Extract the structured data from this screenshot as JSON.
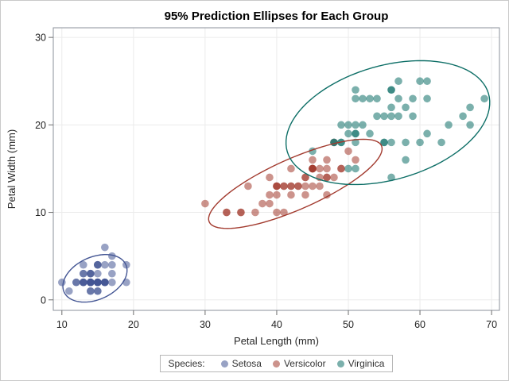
{
  "title": "95% Prediction Ellipses for Each Group",
  "legend": {
    "label": "Species:",
    "items": [
      {
        "name": "Setosa"
      },
      {
        "name": "Versicolor"
      },
      {
        "name": "Virginica"
      }
    ]
  },
  "chart_data": {
    "type": "scatter",
    "title": "95% Prediction Ellipses for Each Group",
    "xlabel": "Petal Length (mm)",
    "ylabel": "Petal Width (mm)",
    "xticks": [
      10,
      20,
      30,
      40,
      50,
      60,
      70
    ],
    "yticks": [
      0,
      10,
      20,
      30
    ],
    "xlim": [
      8.8,
      71.1
    ],
    "ylim": [
      -1.2,
      31.1
    ],
    "grid": true,
    "legend_position": "bottom",
    "marker_alpha": 0.55,
    "colors": {
      "grid": "#ebebeb",
      "plot_border": "#8b929b",
      "tick": "#6d6d6d",
      "tick_label": "#222222",
      "figure_border": "#c9c9c9"
    },
    "series": [
      {
        "name": "Setosa",
        "color": "#445694",
        "points": [
          [
            14,
            2
          ],
          [
            14,
            2
          ],
          [
            13,
            2
          ],
          [
            15,
            2
          ],
          [
            14,
            2
          ],
          [
            17,
            4
          ],
          [
            14,
            3
          ],
          [
            15,
            2
          ],
          [
            14,
            2
          ],
          [
            15,
            1
          ],
          [
            15,
            2
          ],
          [
            16,
            2
          ],
          [
            14,
            1
          ],
          [
            11,
            1
          ],
          [
            12,
            2
          ],
          [
            15,
            4
          ],
          [
            13,
            4
          ],
          [
            14,
            3
          ],
          [
            17,
            3
          ],
          [
            15,
            3
          ],
          [
            17,
            2
          ],
          [
            15,
            4
          ],
          [
            10,
            2
          ],
          [
            17,
            5
          ],
          [
            19,
            2
          ],
          [
            16,
            2
          ],
          [
            16,
            4
          ],
          [
            15,
            2
          ],
          [
            14,
            2
          ],
          [
            16,
            2
          ],
          [
            16,
            2
          ],
          [
            15,
            4
          ],
          [
            15,
            1
          ],
          [
            14,
            2
          ],
          [
            15,
            2
          ],
          [
            12,
            2
          ],
          [
            13,
            2
          ],
          [
            14,
            1
          ],
          [
            13,
            2
          ],
          [
            15,
            2
          ],
          [
            13,
            3
          ],
          [
            13,
            3
          ],
          [
            13,
            2
          ],
          [
            16,
            6
          ],
          [
            19,
            4
          ],
          [
            14,
            3
          ],
          [
            16,
            2
          ],
          [
            14,
            2
          ],
          [
            15,
            2
          ],
          [
            14,
            2
          ]
        ],
        "ellipse": {
          "cx": 14.62,
          "cy": 2.46,
          "a": 4.61,
          "b": 2.49,
          "angle_deg": 16.3
        }
      },
      {
        "name": "Versicolor",
        "color": "#A23A2E",
        "points": [
          [
            47,
            14
          ],
          [
            45,
            15
          ],
          [
            49,
            15
          ],
          [
            40,
            13
          ],
          [
            46,
            15
          ],
          [
            45,
            13
          ],
          [
            47,
            16
          ],
          [
            33,
            10
          ],
          [
            46,
            13
          ],
          [
            39,
            14
          ],
          [
            35,
            10
          ],
          [
            42,
            15
          ],
          [
            40,
            10
          ],
          [
            47,
            14
          ],
          [
            36,
            13
          ],
          [
            44,
            14
          ],
          [
            45,
            15
          ],
          [
            41,
            10
          ],
          [
            45,
            15
          ],
          [
            39,
            11
          ],
          [
            48,
            18
          ],
          [
            40,
            13
          ],
          [
            49,
            15
          ],
          [
            47,
            12
          ],
          [
            43,
            13
          ],
          [
            44,
            14
          ],
          [
            48,
            14
          ],
          [
            50,
            17
          ],
          [
            45,
            15
          ],
          [
            35,
            10
          ],
          [
            38,
            11
          ],
          [
            37,
            10
          ],
          [
            39,
            12
          ],
          [
            51,
            16
          ],
          [
            45,
            15
          ],
          [
            45,
            16
          ],
          [
            47,
            15
          ],
          [
            44,
            13
          ],
          [
            41,
            13
          ],
          [
            40,
            13
          ],
          [
            44,
            12
          ],
          [
            46,
            14
          ],
          [
            40,
            12
          ],
          [
            33,
            10
          ],
          [
            42,
            13
          ],
          [
            42,
            12
          ],
          [
            42,
            13
          ],
          [
            43,
            13
          ],
          [
            30,
            11
          ],
          [
            41,
            13
          ]
        ],
        "ellipse": {
          "cx": 42.6,
          "cy": 13.26,
          "a": 12.8,
          "b": 2.98,
          "angle_deg": 19.4
        }
      },
      {
        "name": "Virginica",
        "color": "#0E6F67",
        "points": [
          [
            60,
            25
          ],
          [
            51,
            19
          ],
          [
            59,
            21
          ],
          [
            56,
            18
          ],
          [
            58,
            22
          ],
          [
            66,
            21
          ],
          [
            45,
            17
          ],
          [
            63,
            18
          ],
          [
            58,
            18
          ],
          [
            61,
            25
          ],
          [
            51,
            20
          ],
          [
            53,
            19
          ],
          [
            55,
            21
          ],
          [
            50,
            20
          ],
          [
            51,
            24
          ],
          [
            53,
            23
          ],
          [
            55,
            18
          ],
          [
            67,
            22
          ],
          [
            69,
            23
          ],
          [
            50,
            15
          ],
          [
            57,
            23
          ],
          [
            49,
            20
          ],
          [
            67,
            20
          ],
          [
            49,
            18
          ],
          [
            57,
            21
          ],
          [
            60,
            18
          ],
          [
            48,
            18
          ],
          [
            49,
            18
          ],
          [
            56,
            21
          ],
          [
            58,
            16
          ],
          [
            61,
            19
          ],
          [
            64,
            20
          ],
          [
            56,
            22
          ],
          [
            51,
            15
          ],
          [
            56,
            14
          ],
          [
            61,
            23
          ],
          [
            56,
            24
          ],
          [
            55,
            18
          ],
          [
            48,
            18
          ],
          [
            54,
            21
          ],
          [
            56,
            24
          ],
          [
            51,
            23
          ],
          [
            51,
            19
          ],
          [
            59,
            23
          ],
          [
            57,
            25
          ],
          [
            52,
            23
          ],
          [
            50,
            19
          ],
          [
            52,
            20
          ],
          [
            54,
            23
          ],
          [
            51,
            18
          ]
        ],
        "ellipse": {
          "cx": 55.52,
          "cy": 20.26,
          "a": 14.46,
          "b": 6.59,
          "angle_deg": 11.6
        }
      }
    ]
  }
}
